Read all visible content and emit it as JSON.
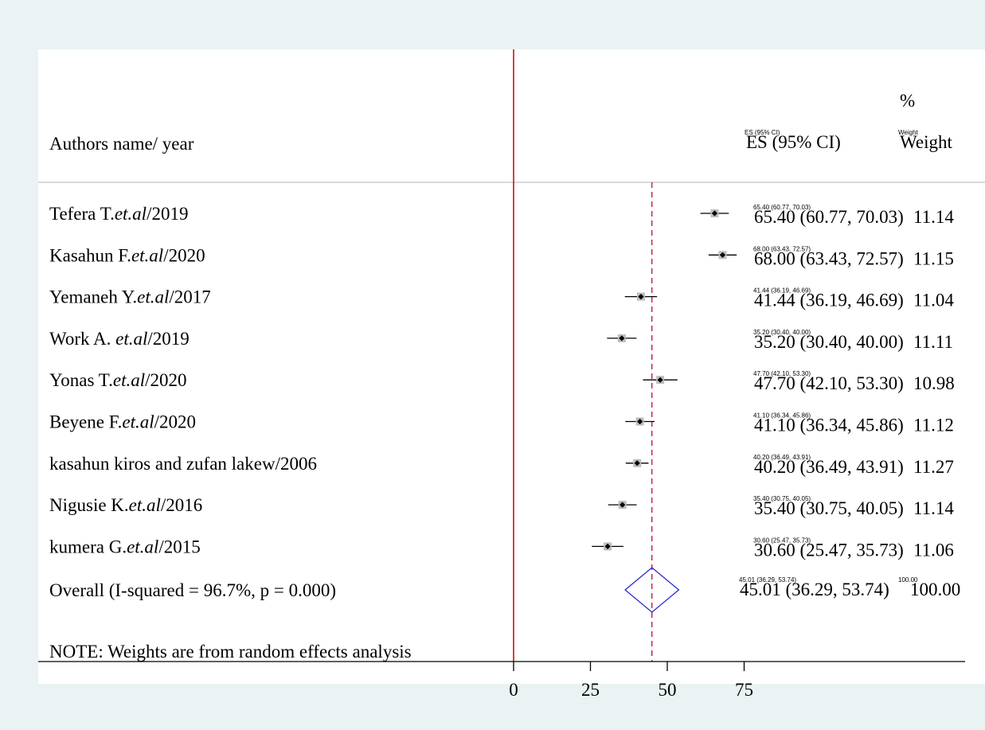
{
  "chart_data": {
    "type": "forest",
    "header": {
      "study_label": "Authors name/ year",
      "es_label": "ES (95% CI)",
      "weight_pct": "%",
      "weight_label": "Weight",
      "es_small": "ES (95% CI)",
      "weight_small": "Weight"
    },
    "studies": [
      {
        "label": "Tefera T.",
        "etal": "et.al",
        "year": "/2019",
        "es": 65.4,
        "lo": 60.77,
        "hi": 70.03,
        "es_text": "65.40 (60.77, 70.03)",
        "weight": "11.14"
      },
      {
        "label": "Kasahun F.",
        "etal": "et.al",
        "year": "/2020",
        "es": 68.0,
        "lo": 63.43,
        "hi": 72.57,
        "es_text": "68.00 (63.43, 72.57)",
        "weight": "11.15"
      },
      {
        "label": "Yemaneh Y.",
        "etal": "et.al",
        "year": "/2017",
        "es": 41.44,
        "lo": 36.19,
        "hi": 46.69,
        "es_text": "41.44 (36.19, 46.69)",
        "weight": "11.04"
      },
      {
        "label": "Work A. ",
        "etal": "et.al",
        "year": "/2019",
        "es": 35.2,
        "lo": 30.4,
        "hi": 40.0,
        "es_text": "35.20 (30.40, 40.00)",
        "weight": "11.11"
      },
      {
        "label": "Yonas T.",
        "etal": "et.al",
        "year": "/2020",
        "es": 47.7,
        "lo": 42.1,
        "hi": 53.3,
        "es_text": "47.70 (42.10, 53.30)",
        "weight": "10.98"
      },
      {
        "label": "Beyene F.",
        "etal": "et.al",
        "year": "/2020",
        "es": 41.1,
        "lo": 36.34,
        "hi": 45.86,
        "es_text": "41.10 (36.34, 45.86)",
        "weight": "11.12"
      },
      {
        "label": "kasahun kiros and zufan lakew/2006",
        "etal": "",
        "year": "",
        "es": 40.2,
        "lo": 36.49,
        "hi": 43.91,
        "es_text": "40.20 (36.49, 43.91)",
        "weight": "11.27"
      },
      {
        "label": "Nigusie K.",
        "etal": "et.al",
        "year": "/2016",
        "es": 35.4,
        "lo": 30.75,
        "hi": 40.05,
        "es_text": "35.40 (30.75, 40.05)",
        "weight": "11.14"
      },
      {
        "label": "kumera G.",
        "etal": "et.al",
        "year": "/2015",
        "es": 30.6,
        "lo": 25.47,
        "hi": 35.73,
        "es_text": "30.60 (25.47, 35.73)",
        "weight": "11.06"
      }
    ],
    "overall": {
      "label": "Overall  (I-squared = 96.7%, p = 0.000)",
      "es": 45.01,
      "lo": 36.29,
      "hi": 53.74,
      "es_text": "45.01 (36.29, 53.74)",
      "weight": "100.00"
    },
    "note": "NOTE: Weights are from random effects analysis",
    "x_axis": {
      "ticks": [
        0,
        25,
        50,
        75
      ],
      "tick_labels": [
        "0",
        "25",
        "50",
        "75"
      ],
      "null_line": 0
    },
    "colors": {
      "null_line": "#cc0000",
      "overall_line": "#b00020",
      "diamond": "#1f1fd6",
      "point": "#000000"
    }
  }
}
